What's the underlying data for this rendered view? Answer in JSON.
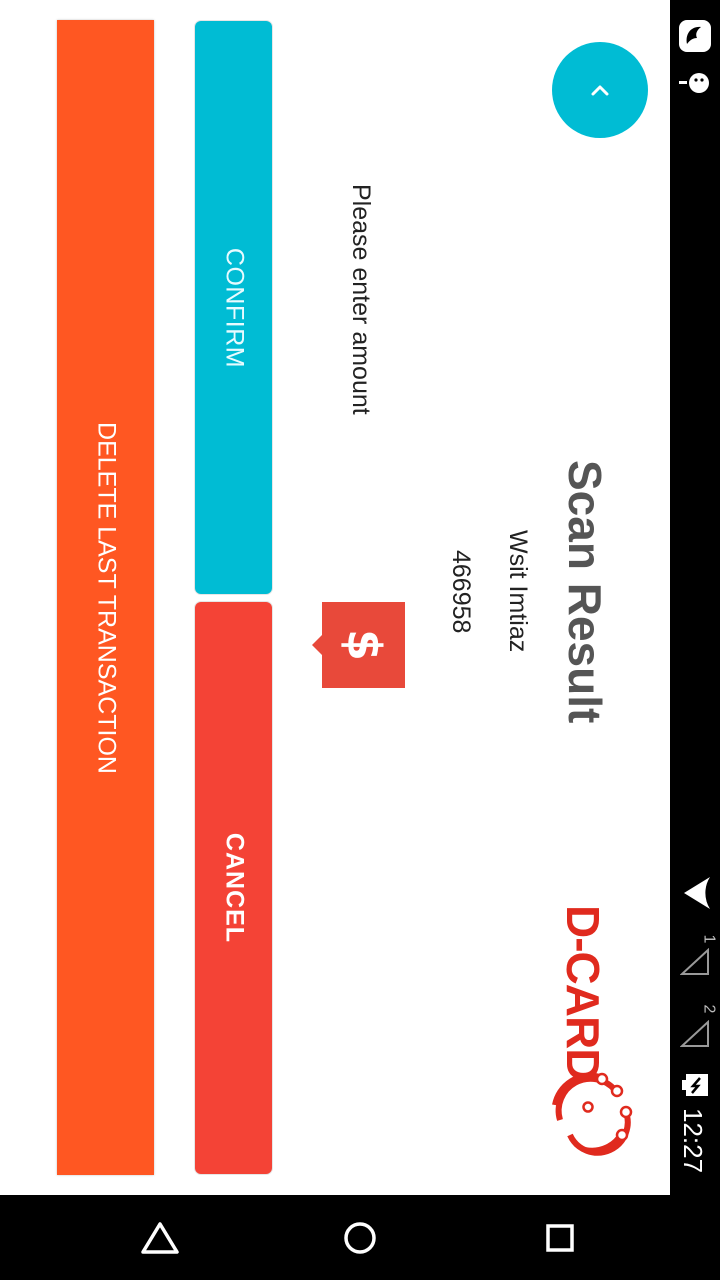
{
  "header": {
    "title": "Scan Result"
  },
  "customer": {
    "name": "Wsit Imtiaz",
    "card_number": "466958"
  },
  "amount": {
    "prompt": "Please enter amount",
    "currency_symbol": "$"
  },
  "buttons": {
    "confirm_label": "CONFIRM",
    "cancel_label": "CANCEL",
    "delete_label": "DELETE LAST TRANSACTION"
  },
  "logo": {
    "text": "D-CARD"
  },
  "status_bar": {
    "time": "12:27",
    "sim1": "1",
    "sim2": "2"
  },
  "icons": {
    "fab": "chevron-up-icon",
    "nav_back": "back-triangle-icon",
    "nav_home": "home-circle-icon",
    "nav_recents": "recents-square-icon"
  },
  "colors": {
    "accent": "#00bcd4",
    "cancel": "#f44336",
    "delete": "#ff5722",
    "dollar_badge": "#e8493a",
    "logo": "#e02a1e"
  }
}
